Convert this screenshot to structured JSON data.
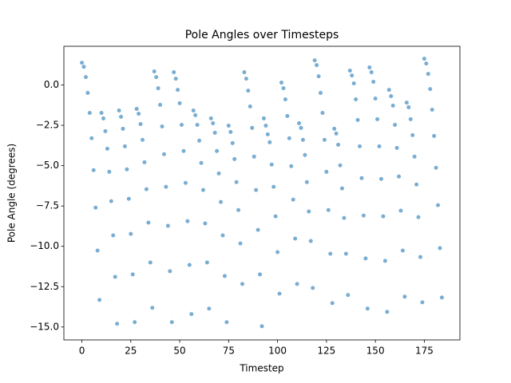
{
  "chart_data": {
    "type": "scatter",
    "title": "Pole Angles over Timesteps",
    "x_label": "Timestep",
    "y_label": "Pole Angle (degrees)",
    "color": "#1f77b4",
    "x": [
      0,
      1,
      2,
      3,
      4,
      5,
      6,
      7,
      8,
      9,
      10,
      11,
      12,
      13,
      14,
      15,
      16,
      17,
      18,
      19,
      20,
      21,
      22,
      23,
      24,
      25,
      26,
      27,
      28,
      29,
      30,
      31,
      32,
      33,
      34,
      35,
      36,
      37,
      38,
      39,
      40,
      41,
      42,
      43,
      44,
      45,
      46,
      47,
      48,
      49,
      50,
      51,
      52,
      53,
      54,
      55,
      56,
      57,
      58,
      59,
      60,
      61,
      62,
      63,
      64,
      65,
      66,
      67,
      68,
      69,
      70,
      71,
      72,
      73,
      74,
      75,
      76,
      77,
      78,
      79,
      80,
      81,
      82,
      83,
      84,
      85,
      86,
      87,
      88,
      89,
      90,
      91,
      92,
      93,
      94,
      95,
      96,
      97,
      98,
      99,
      100,
      101,
      102,
      103,
      104,
      105,
      106,
      107,
      108,
      109,
      110,
      111,
      112,
      113,
      114,
      115,
      116,
      117,
      118,
      119,
      120,
      121,
      122,
      123,
      124,
      125,
      126,
      127,
      128,
      129,
      130,
      131,
      132,
      133,
      134,
      135,
      136,
      137,
      138,
      139,
      140,
      141,
      142,
      143,
      144,
      145,
      146,
      147,
      148,
      149,
      150,
      151,
      152,
      153,
      154,
      155,
      156,
      157,
      158,
      159,
      160,
      161,
      162,
      163,
      164,
      165,
      166,
      167,
      168,
      169,
      170,
      171,
      172,
      173,
      174,
      175,
      176,
      177,
      178,
      179,
      180,
      181,
      182,
      183,
      184
    ],
    "values": [
      1.38,
      1.13,
      0.49,
      -0.49,
      -1.73,
      -3.3,
      -5.28,
      -7.6,
      -10.26,
      -13.32,
      -1.73,
      -2.07,
      -2.86,
      -3.95,
      -5.38,
      -7.2,
      -9.32,
      -11.89,
      -14.8,
      -1.58,
      -1.97,
      -2.71,
      -3.8,
      -5.23,
      -7.05,
      -9.23,
      -11.74,
      -14.7,
      -1.48,
      -1.78,
      -2.42,
      -3.4,
      -4.79,
      -6.46,
      -8.53,
      -11.0,
      -13.81,
      0.84,
      0.49,
      -0.2,
      -1.23,
      -2.57,
      -4.29,
      -6.31,
      -8.73,
      -11.54,
      -14.7,
      0.79,
      0.39,
      -0.3,
      -1.13,
      -2.47,
      -4.09,
      -6.07,
      -8.44,
      -11.15,
      -14.2,
      -1.58,
      -1.87,
      -2.47,
      -3.45,
      -4.83,
      -6.51,
      -8.58,
      -11.0,
      -13.86,
      -2.07,
      -2.37,
      -2.96,
      -4.09,
      -5.48,
      -7.25,
      -9.32,
      -11.84,
      -14.7,
      -2.52,
      -2.91,
      -3.6,
      -4.59,
      -6.02,
      -7.75,
      -9.82,
      -12.33,
      0.79,
      0.39,
      -0.35,
      -1.33,
      -2.66,
      -4.44,
      -6.51,
      -8.98,
      -11.74,
      -14.95,
      -2.07,
      -2.52,
      -3.06,
      -3.55,
      -4.93,
      -6.31,
      -8.14,
      -10.36,
      -12.93,
      0.15,
      -0.2,
      -0.89,
      -1.92,
      -3.3,
      -5.03,
      -7.1,
      -9.52,
      -12.33,
      -2.37,
      -2.66,
      -3.4,
      -4.34,
      -6.02,
      -7.84,
      -9.67,
      -12.58,
      1.53,
      1.23,
      0.54,
      -0.49,
      -1.73,
      -3.4,
      -5.38,
      -7.75,
      -10.46,
      -13.52,
      -2.71,
      -3.01,
      -3.7,
      -4.98,
      -6.41,
      -8.24,
      -10.46,
      -13.02,
      0.89,
      0.59,
      0.1,
      -0.89,
      -2.17,
      -3.8,
      -5.77,
      -8.09,
      -10.75,
      -13.86,
      1.09,
      0.79,
      0.2,
      -0.84,
      -2.12,
      -3.8,
      -5.82,
      -8.14,
      -10.9,
      -14.06,
      -0.3,
      -0.69,
      -1.28,
      -2.47,
      -3.9,
      -5.67,
      -7.79,
      -10.26,
      -13.12,
      -1.09,
      -1.38,
      -2.12,
      -3.11,
      -4.44,
      -6.17,
      -8.19,
      -10.66,
      -13.47,
      1.63,
      1.33,
      0.69,
      -0.25,
      -1.53,
      -3.16,
      -5.13,
      -7.45,
      -10.11,
      -13.17
    ],
    "xlim": [
      -9.2,
      193.2
    ],
    "ylim": [
      -15.8,
      2.4
    ],
    "xticks": [
      0,
      25,
      50,
      75,
      100,
      125,
      150,
      175
    ],
    "yticks": [
      {
        "value": 0,
        "label": "0.0"
      },
      {
        "value": -2.5,
        "label": "−2.5"
      },
      {
        "value": -5,
        "label": "−5.0"
      },
      {
        "value": -7.5,
        "label": "−7.5"
      },
      {
        "value": -10,
        "label": "−10.0"
      },
      {
        "value": -12.5,
        "label": "−12.5"
      },
      {
        "value": -15,
        "label": "−15.0"
      }
    ]
  }
}
